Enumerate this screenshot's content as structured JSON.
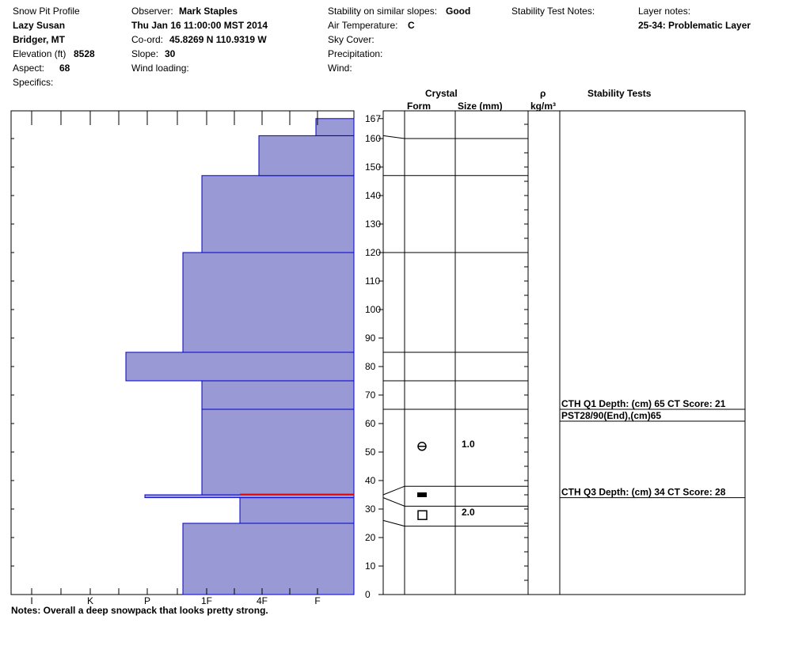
{
  "header": {
    "title": "Snow Pit Profile",
    "location_name": "Lazy Susan",
    "region": "Bridger, MT",
    "elevation_label": "Elevation (ft)",
    "elevation_value": "8528",
    "aspect_label": "Aspect:",
    "aspect_value": "68",
    "specifics_label": "Specifics:",
    "observer_label": "Observer:",
    "observer_value": "Mark Staples",
    "datetime": "Thu Jan 16 11:00:00 MST 2014",
    "coord_label": "Co-ord:",
    "coord_value": "45.8269 N 110.9319 W",
    "slope_label": "Slope:",
    "slope_value": "30",
    "wind_loading_label": "Wind loading:",
    "stability_label": "Stability on similar slopes:",
    "stability_value": "Good",
    "air_temp_label": "Air Temperature:",
    "air_temp_value": "C",
    "sky_cover_label": "Sky Cover:",
    "precip_label": "Precipitation:",
    "wind_label": "Wind:",
    "stability_notes_label": "Stability Test Notes:",
    "layer_notes_label": "Layer notes:",
    "layer_note_value": "25-34: Problematic Layer"
  },
  "columns": {
    "crystal": "Crystal",
    "form": "Form",
    "size": "Size (mm)",
    "rho": "ρ",
    "density_unit": "kg/m³",
    "stability_tests": "Stability Tests"
  },
  "notes": "Notes:  Overall a deep snowpack that looks pretty strong.",
  "chart_data": {
    "type": "bar",
    "subtype": "snow-hardness-profile",
    "y_axis": {
      "min": 0,
      "max": 167,
      "ticks": [
        0,
        10,
        20,
        30,
        40,
        50,
        60,
        70,
        80,
        90,
        100,
        110,
        120,
        130,
        140,
        150,
        160,
        167
      ],
      "unit": "cm"
    },
    "hardness_axis": {
      "ticks": [
        "I",
        "K",
        "P",
        "1F",
        "4F",
        "F"
      ]
    },
    "layers": [
      {
        "bottom": 0,
        "top": 25,
        "hardness": "1F+"
      },
      {
        "bottom": 25,
        "top": 34,
        "hardness": "4F"
      },
      {
        "bottom": 34,
        "top": 35,
        "hardness": "P+"
      },
      {
        "bottom": 35,
        "top": 65,
        "hardness": "1F"
      },
      {
        "bottom": 65,
        "top": 75,
        "hardness": "1F"
      },
      {
        "bottom": 75,
        "top": 85,
        "hardness": "P+"
      },
      {
        "bottom": 85,
        "top": 120,
        "hardness": "1F+"
      },
      {
        "bottom": 120,
        "top": 147,
        "hardness": "1F"
      },
      {
        "bottom": 147,
        "top": 161,
        "hardness": "4F"
      },
      {
        "bottom": 161,
        "top": 167,
        "hardness": "F-"
      }
    ],
    "layer_lines_cm": [
      24,
      31,
      38,
      65,
      75,
      85,
      120,
      147,
      160
    ],
    "problem_layer_cm": 34,
    "grains": [
      {
        "depth": 52,
        "form": "faceted-rounded",
        "size": "1.0"
      },
      {
        "depth": 35,
        "form": "melt-freeze-crust",
        "size": ""
      },
      {
        "depth": 28,
        "form": "faceted",
        "size": "2.0"
      }
    ],
    "stability_tests": [
      {
        "depth": 65,
        "text": "CTH Q1 Depth: (cm) 65 CT Score: 21"
      },
      {
        "depth": 65,
        "text": "PST28/90(End),(cm)65"
      },
      {
        "depth": 34,
        "text": "CTH Q3 Depth: (cm) 34 CT Score: 28"
      }
    ],
    "colors": {
      "fill": "#9999d6",
      "outline": "#0000cc",
      "problem": "#dd0000"
    }
  }
}
